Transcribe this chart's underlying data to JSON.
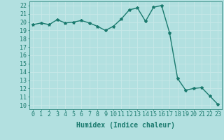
{
  "x": [
    0,
    1,
    2,
    3,
    4,
    5,
    6,
    7,
    8,
    9,
    10,
    11,
    12,
    13,
    14,
    15,
    16,
    17,
    18,
    19,
    20,
    21,
    22,
    23
  ],
  "y": [
    19.7,
    19.9,
    19.7,
    20.3,
    19.9,
    20.0,
    20.2,
    19.9,
    19.5,
    19.0,
    19.5,
    20.4,
    21.5,
    21.7,
    20.1,
    21.8,
    22.0,
    18.7,
    13.2,
    11.8,
    12.0,
    12.1,
    11.1,
    10.1
  ],
  "line_color": "#1a7a6e",
  "bg_color": "#b2e0e0",
  "grid_color": "#c8e8e8",
  "xlabel": "Humidex (Indice chaleur)",
  "ylabel_ticks": [
    10,
    11,
    12,
    13,
    14,
    15,
    16,
    17,
    18,
    19,
    20,
    21,
    22
  ],
  "ylim": [
    9.5,
    22.5
  ],
  "xlim": [
    -0.5,
    23.5
  ],
  "marker": "*",
  "markersize": 3,
  "linewidth": 1.0,
  "fontsize_label": 7,
  "fontsize_tick": 6
}
